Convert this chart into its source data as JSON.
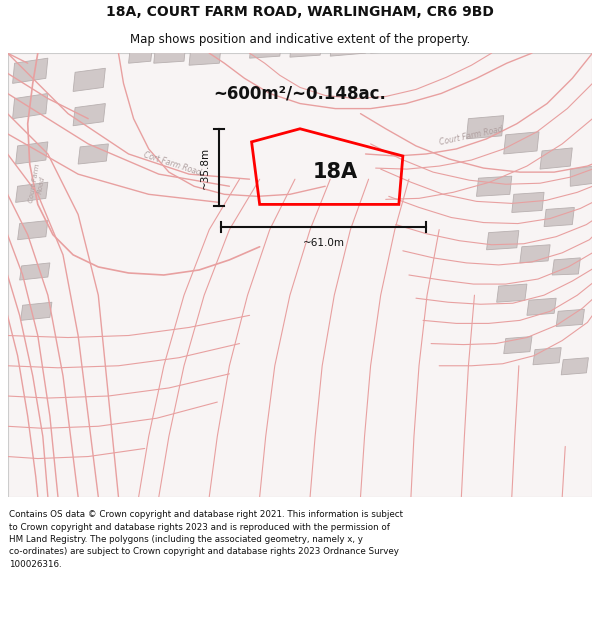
{
  "title": "18A, COURT FARM ROAD, WARLINGHAM, CR6 9BD",
  "subtitle": "Map shows position and indicative extent of the property.",
  "area_label": "~600m²/~0.148ac.",
  "plot_label": "18A",
  "width_label": "~61.0m",
  "height_label": "~35.8m",
  "footer_line1": "Contains OS data © Crown copyright and database right 2021. This information is subject",
  "footer_line2": "to Crown copyright and database rights 2023 and is reproduced with the permission of",
  "footer_line3": "HM Land Registry. The polygons (including the associated geometry, namely x, y",
  "footer_line4": "co-ordinates) are subject to Crown copyright and database rights 2023 Ordnance Survey",
  "footer_line5": "100026316.",
  "bg_color": "#f8f4f4",
  "road_color": "#e8a0a0",
  "building_color": "#d0c8c8",
  "building_edge": "#b8b0b0",
  "plot_color": "#ff0000",
  "label_color": "#111111",
  "dim_color": "#111111",
  "road_label_color": "#b0a0a0"
}
